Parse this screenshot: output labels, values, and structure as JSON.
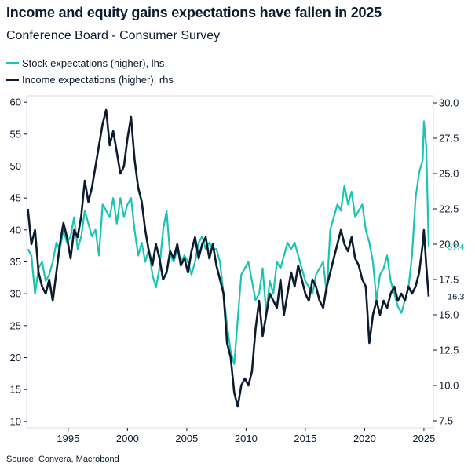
{
  "header": {
    "title": "Income and equity gains expectations have fallen in 2025",
    "subtitle": "Conference Board - Consumer Survey"
  },
  "legend": {
    "stock_label": "Stock expectations (higher), lhs",
    "income_label": "Income expectations (higher), rhs"
  },
  "footer": {
    "source": "Source: Convera, Macrobond"
  },
  "chart_data": {
    "type": "line",
    "title": "Income and equity gains expectations have fallen in 2025",
    "subtitle": "Conference Board - Consumer Survey",
    "x_ticks": [
      1995,
      2000,
      2005,
      2010,
      2015,
      2020,
      2025
    ],
    "xlim": [
      1991.5,
      2025.8
    ],
    "y_left": {
      "lim": [
        9,
        61
      ],
      "ticks": [
        10,
        15,
        20,
        25,
        30,
        35,
        40,
        45,
        50,
        55,
        60
      ]
    },
    "y_right": {
      "lim": [
        7.0,
        30.5
      ],
      "ticks": [
        "7.5",
        "10.0",
        "12.5",
        "15.0",
        "17.5",
        "20.0",
        "22.5",
        "25.0",
        "27.5",
        "30.0"
      ]
    },
    "series": [
      {
        "name": "Stock expectations (higher), lhs",
        "axis": "left",
        "color": "#1cc3b5",
        "end_label": "37.4",
        "x": [
          1991.6,
          1991.9,
          1992.2,
          1992.5,
          1992.8,
          1993.1,
          1993.4,
          1993.7,
          1994.0,
          1994.3,
          1994.6,
          1994.9,
          1995.2,
          1995.5,
          1995.8,
          1996.1,
          1996.4,
          1996.7,
          1997.0,
          1997.3,
          1997.6,
          1997.9,
          1998.2,
          1998.5,
          1998.8,
          1999.1,
          1999.4,
          1999.7,
          2000.0,
          2000.3,
          2000.6,
          2000.9,
          2001.2,
          2001.5,
          2001.8,
          2002.1,
          2002.4,
          2002.7,
          2003.0,
          2003.3,
          2003.6,
          2003.9,
          2004.2,
          2004.5,
          2004.8,
          2005.1,
          2005.4,
          2005.7,
          2006.0,
          2006.3,
          2006.6,
          2006.9,
          2007.2,
          2007.5,
          2007.8,
          2008.1,
          2008.4,
          2008.7,
          2009.0,
          2009.3,
          2009.6,
          2009.9,
          2010.2,
          2010.5,
          2010.8,
          2011.1,
          2011.4,
          2011.7,
          2012.0,
          2012.3,
          2012.6,
          2012.9,
          2013.2,
          2013.5,
          2013.8,
          2014.1,
          2014.4,
          2014.7,
          2015.0,
          2015.3,
          2015.6,
          2015.9,
          2016.2,
          2016.5,
          2016.8,
          2017.1,
          2017.4,
          2017.7,
          2018.0,
          2018.3,
          2018.6,
          2018.9,
          2019.2,
          2019.5,
          2019.8,
          2020.1,
          2020.4,
          2020.7,
          2021.0,
          2021.3,
          2021.6,
          2021.9,
          2022.2,
          2022.5,
          2022.8,
          2023.1,
          2023.4,
          2023.7,
          2024.0,
          2024.3,
          2024.6,
          2024.9,
          2025.0,
          2025.2,
          2025.4
        ],
        "values": [
          37,
          36,
          30,
          34,
          35,
          32,
          33,
          35,
          38,
          37,
          40,
          38,
          39,
          42,
          37,
          39,
          43,
          41,
          39,
          40,
          36,
          44,
          43,
          42,
          45,
          41,
          45,
          42,
          44,
          45,
          40,
          36,
          38,
          35,
          37,
          33,
          31,
          34,
          40,
          43,
          36,
          35,
          37,
          35,
          36,
          35,
          33,
          35,
          38,
          39,
          37,
          38,
          37,
          37,
          35,
          30,
          25,
          21,
          19,
          26,
          33,
          34,
          35,
          32,
          29,
          30,
          34,
          27,
          32,
          30,
          35,
          34,
          36,
          38,
          37,
          38,
          36,
          34,
          32,
          31,
          30,
          33,
          34,
          35,
          30,
          40,
          42,
          44,
          43,
          47,
          44,
          46,
          42,
          43,
          44,
          40,
          38,
          35,
          29,
          33,
          34,
          36,
          32,
          30,
          28,
          27,
          29,
          31,
          36,
          45,
          49,
          51,
          57,
          53,
          37.4
        ]
      },
      {
        "name": "Income expectations (higher), rhs",
        "axis": "right",
        "color": "#0d1b2e",
        "end_label": "16.3",
        "x": [
          1991.6,
          1991.9,
          1992.2,
          1992.5,
          1992.8,
          1993.1,
          1993.4,
          1993.7,
          1994.0,
          1994.3,
          1994.6,
          1994.9,
          1995.2,
          1995.5,
          1995.8,
          1996.1,
          1996.4,
          1996.7,
          1997.0,
          1997.3,
          1997.6,
          1997.9,
          1998.2,
          1998.5,
          1998.8,
          1999.1,
          1999.4,
          1999.7,
          2000.0,
          2000.3,
          2000.6,
          2000.9,
          2001.2,
          2001.5,
          2001.8,
          2002.1,
          2002.4,
          2002.7,
          2003.0,
          2003.3,
          2003.6,
          2003.9,
          2004.2,
          2004.5,
          2004.8,
          2005.1,
          2005.4,
          2005.7,
          2006.0,
          2006.3,
          2006.6,
          2006.9,
          2007.2,
          2007.5,
          2007.8,
          2008.1,
          2008.4,
          2008.7,
          2009.0,
          2009.3,
          2009.6,
          2009.9,
          2010.2,
          2010.5,
          2010.8,
          2011.1,
          2011.4,
          2011.7,
          2012.0,
          2012.3,
          2012.6,
          2012.9,
          2013.2,
          2013.5,
          2013.8,
          2014.1,
          2014.4,
          2014.7,
          2015.0,
          2015.3,
          2015.6,
          2015.9,
          2016.2,
          2016.5,
          2016.8,
          2017.1,
          2017.4,
          2017.7,
          2018.0,
          2018.3,
          2018.6,
          2018.9,
          2019.2,
          2019.5,
          2019.8,
          2020.1,
          2020.4,
          2020.7,
          2021.0,
          2021.3,
          2021.6,
          2021.9,
          2022.2,
          2022.5,
          2022.8,
          2023.1,
          2023.4,
          2023.7,
          2024.0,
          2024.3,
          2024.6,
          2024.9,
          2025.0,
          2025.2,
          2025.4
        ],
        "values": [
          22.5,
          20.0,
          21.0,
          18.0,
          17.0,
          16.5,
          17.5,
          16.0,
          18.0,
          20.0,
          21.5,
          20.5,
          19.0,
          21.0,
          20.5,
          22.0,
          24.5,
          23.0,
          24.0,
          25.5,
          27.0,
          28.5,
          29.5,
          27.0,
          28.0,
          26.5,
          25.0,
          25.5,
          27.5,
          29.0,
          26.0,
          24.0,
          23.0,
          21.0,
          19.5,
          18.5,
          20.0,
          19.0,
          17.5,
          18.0,
          19.5,
          19.0,
          20.0,
          18.5,
          19.0,
          18.0,
          19.5,
          20.5,
          19.0,
          20.0,
          20.5,
          19.0,
          20.0,
          18.5,
          17.5,
          16.5,
          13.0,
          12.0,
          9.5,
          8.5,
          10.0,
          10.5,
          10.0,
          11.0,
          14.0,
          16.0,
          13.5,
          15.0,
          16.5,
          16.0,
          15.5,
          17.5,
          15.0,
          16.5,
          18.0,
          17.0,
          18.5,
          17.5,
          16.5,
          16.0,
          17.5,
          17.0,
          16.0,
          15.5,
          17.0,
          18.0,
          19.0,
          20.0,
          21.0,
          20.0,
          19.5,
          20.5,
          19.0,
          18.5,
          17.5,
          17.0,
          13.0,
          15.0,
          16.0,
          15.0,
          16.0,
          15.5,
          16.5,
          17.0,
          16.0,
          16.5,
          16.0,
          17.0,
          16.5,
          17.0,
          18.0,
          20.0,
          21.0,
          18.5,
          16.3
        ]
      }
    ]
  }
}
